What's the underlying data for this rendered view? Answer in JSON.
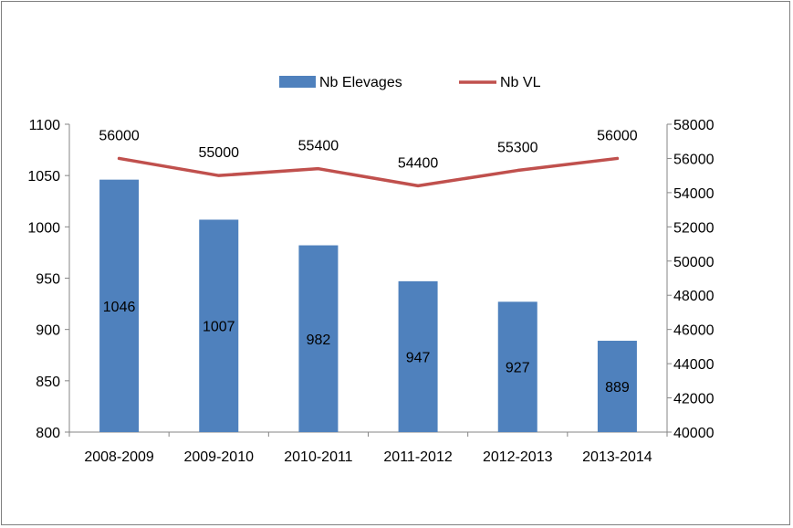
{
  "chart_data": {
    "type": "bar",
    "categories": [
      "2008-2009",
      "2009-2010",
      "2010-2011",
      "2011-2012",
      "2012-2013",
      "2013-2014"
    ],
    "series": [
      {
        "name": "Nb Elevages",
        "type": "bar",
        "axis": "left",
        "color": "#4f81bd",
        "values": [
          1046,
          1007,
          982,
          947,
          927,
          889
        ],
        "labels": [
          "1046",
          "1007",
          "982",
          "947",
          "927",
          "889"
        ]
      },
      {
        "name": "Nb VL",
        "type": "line",
        "axis": "right",
        "color": "#c0504d",
        "values": [
          56000,
          55000,
          55400,
          54400,
          55300,
          56000
        ],
        "labels": [
          "56000",
          "55000",
          "55400",
          "54400",
          "55300",
          "56000"
        ]
      }
    ],
    "y_left": {
      "ylim": [
        800,
        1100
      ],
      "ticks": [
        "800",
        "850",
        "900",
        "950",
        "1000",
        "1050",
        "1100"
      ]
    },
    "y_right": {
      "ylim": [
        40000,
        58000
      ],
      "ticks": [
        "40000",
        "42000",
        "44000",
        "46000",
        "48000",
        "50000",
        "52000",
        "54000",
        "56000",
        "58000"
      ]
    },
    "legend": {
      "position": "top",
      "entries": [
        "Nb Elevages",
        "Nb VL"
      ]
    },
    "grid": false
  }
}
